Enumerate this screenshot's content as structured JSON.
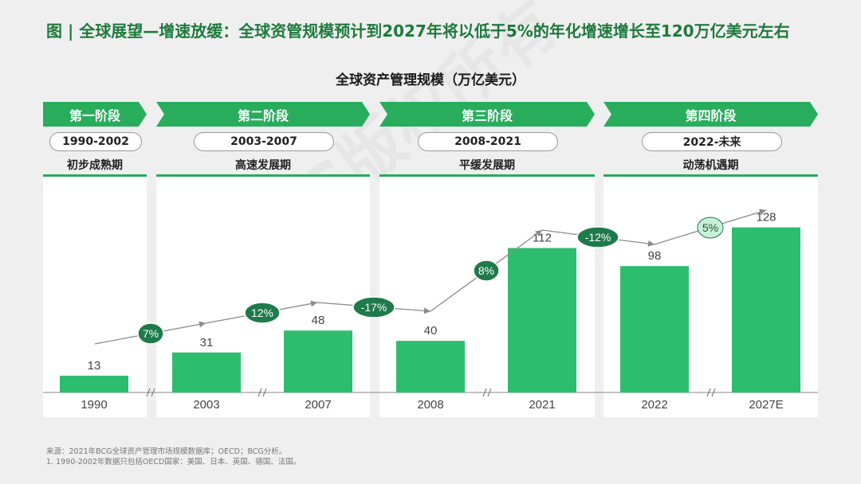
{
  "title": "图 | 全球展望—增速放缓：全球资管规模预计到2027年将以低于5%的年化增速增长至120万亿美元左右",
  "watermark": "BCG版权所有",
  "chart_data": {
    "type": "bar",
    "title": "全球资产管理规模（万亿美元）",
    "categories": [
      "1990",
      "2003",
      "2007",
      "2008",
      "2021",
      "2022",
      "2027E"
    ],
    "values": [
      13,
      31,
      48,
      40,
      112,
      98,
      128
    ],
    "ylim": [
      0,
      140
    ],
    "stages": [
      {
        "label": "第一阶段",
        "years": "1990-2002",
        "phase": "初步成熟期"
      },
      {
        "label": "第二阶段",
        "years": "2003-2007",
        "phase": "高速发展期"
      },
      {
        "label": "第三阶段",
        "years": "2008-2021",
        "phase": "平缓发展期"
      },
      {
        "label": "第四阶段",
        "years": "2022-未来",
        "phase": "动荡机遇期"
      }
    ],
    "growth_labels": [
      "7%",
      "12%",
      "-17%",
      "8%",
      "-12%",
      "5%"
    ],
    "colors": {
      "bar": "#2dbd6e",
      "stage": "#27ad5c",
      "badge_dark": "#1e7a4a",
      "badge_light": "#c9efd9",
      "title": "#1e7a3c"
    }
  },
  "footnotes": [
    "来源：2021年BCG全球资产管理市场规模数据库；OECD；BCG分析。",
    "1.    1990-2002年数据只包括OECD国家：美国、日本、英国、德国、法国。"
  ]
}
